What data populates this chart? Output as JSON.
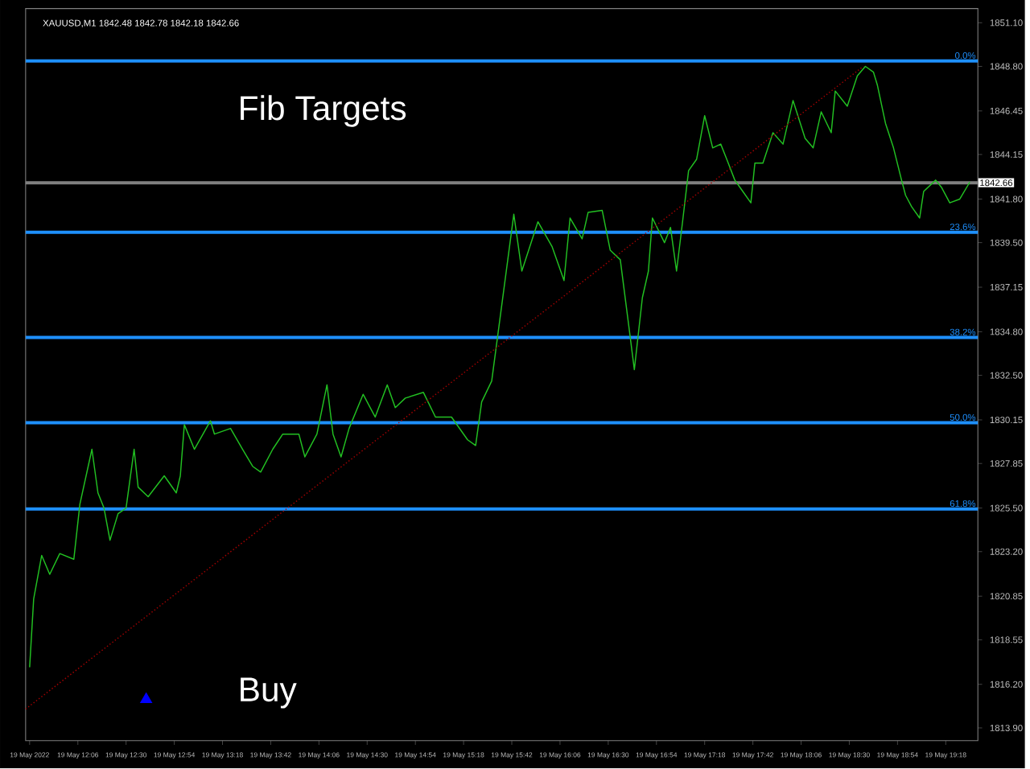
{
  "chart_data": {
    "type": "line",
    "title": "XAUUSD,M1  1842.48 1842.78 1842.18 1842.66",
    "annotations": [
      "Fib Targets",
      "Buy",
      "0.0%",
      "23.6%",
      "38.2%",
      "50.0%",
      "61.8%",
      {
        "text": "1842.66",
        "x": "2022-05-19T19:30",
        "y": 1842.66
      }
    ],
    "xlim": [
      "2022-05-19T11:40",
      "2022-05-19T19:34"
    ],
    "ylim": [
      1813.23,
      1851.85
    ],
    "xticks": [
      {
        "value": "2022-05-19T11:42",
        "label": "19 May 2022"
      },
      {
        "value": "2022-05-19T12:06",
        "label": "19 May 12:06"
      },
      {
        "value": "2022-05-19T12:30",
        "label": "19 May 12:30"
      },
      {
        "value": "2022-05-19T12:54",
        "label": "19 May 12:54"
      },
      {
        "value": "2022-05-19T13:18",
        "label": "19 May 13:18"
      },
      {
        "value": "2022-05-19T13:42",
        "label": "19 May 13:42"
      },
      {
        "value": "2022-05-19T14:06",
        "label": "19 May 14:06"
      },
      {
        "value": "2022-05-19T14:30",
        "label": "19 May 14:30"
      },
      {
        "value": "2022-05-19T14:54",
        "label": "19 May 14:54"
      },
      {
        "value": "2022-05-19T15:18",
        "label": "19 May 15:18"
      },
      {
        "value": "2022-05-19T15:42",
        "label": "19 May 15:42"
      },
      {
        "value": "2022-05-19T16:06",
        "label": "19 May 16:06"
      },
      {
        "value": "2022-05-19T16:30",
        "label": "19 May 16:30"
      },
      {
        "value": "2022-05-19T16:54",
        "label": "19 May 16:54"
      },
      {
        "value": "2022-05-19T17:18",
        "label": "19 May 17:18"
      },
      {
        "value": "2022-05-19T17:42",
        "label": "19 May 17:42"
      },
      {
        "value": "2022-05-19T18:06",
        "label": "19 May 18:06"
      },
      {
        "value": "2022-05-19T18:30",
        "label": "19 May 18:30"
      },
      {
        "value": "2022-05-19T18:54",
        "label": "19 May 18:54"
      },
      {
        "value": "2022-05-19T19:18",
        "label": "19 May 19:18"
      }
    ],
    "yticks": [
      {
        "value": 1851.1,
        "label": "1851.10"
      },
      {
        "value": 1848.8,
        "label": "1848.80"
      },
      1846.45,
      1844.15,
      {
        "value": 1841.8,
        "label": "1841.80"
      },
      {
        "value": 1839.5,
        "label": "1839.50"
      },
      1837.15,
      {
        "value": 1834.8,
        "label": "1834.80"
      },
      {
        "value": 1832.5,
        "label": "1832.50"
      },
      1830.15,
      1827.85,
      {
        "value": 1825.5,
        "label": "1825.50"
      },
      {
        "value": 1823.2,
        "label": "1823.20"
      },
      1820.85,
      1818.55,
      {
        "value": 1816.2,
        "label": "1816.20"
      },
      {
        "value": 1813.9,
        "label": "1813.90"
      }
    ],
    "ref_lines": [
      {
        "axis": "y",
        "value": 1849.09,
        "color": "#1e90ff"
      },
      {
        "axis": "y",
        "value": 1840.05,
        "color": "#1e90ff"
      },
      {
        "axis": "y",
        "value": 1834.5,
        "color": "#1e90ff"
      },
      {
        "axis": "y",
        "value": 1830.0,
        "color": "#1e90ff"
      },
      {
        "axis": "y",
        "value": 1825.45,
        "color": "#1e90ff"
      },
      {
        "axis": "y",
        "value": 1842.66,
        "color": "#808080"
      }
    ],
    "series": [
      {
        "color": "#22c022",
        "x": [
          "2022-05-19T11:42",
          "2022-05-19T11:44",
          "2022-05-19T11:48",
          "2022-05-19T11:52",
          "2022-05-19T11:57",
          "2022-05-19T12:04",
          "2022-05-19T12:07",
          "2022-05-19T12:13",
          "2022-05-19T12:16",
          "2022-05-19T12:19",
          "2022-05-19T12:22",
          "2022-05-19T12:26",
          "2022-05-19T12:30",
          "2022-05-19T12:34",
          "2022-05-19T12:36",
          "2022-05-19T12:41",
          "2022-05-19T12:49",
          "2022-05-19T12:55",
          "2022-05-19T12:57",
          "2022-05-19T12:59",
          "2022-05-19T13:04",
          "2022-05-19T13:12",
          "2022-05-19T13:14",
          "2022-05-19T13:22",
          "2022-05-19T13:28",
          "2022-05-19T13:33",
          "2022-05-19T13:37",
          "2022-05-19T13:43",
          "2022-05-19T13:48",
          "2022-05-19T13:56",
          "2022-05-19T13:59",
          "2022-05-19T14:05",
          "2022-05-19T14:10",
          "2022-05-19T14:13",
          "2022-05-19T14:17",
          "2022-05-19T14:21",
          "2022-05-19T14:28",
          "2022-05-19T14:34",
          "2022-05-19T14:40",
          "2022-05-19T14:44",
          "2022-05-19T14:49",
          "2022-05-19T14:58",
          "2022-05-19T15:04",
          "2022-05-19T15:12",
          "2022-05-19T15:20",
          "2022-05-19T15:24",
          "2022-05-19T15:27",
          "2022-05-19T15:32",
          "2022-05-19T15:40",
          "2022-05-19T15:43",
          "2022-05-19T15:47",
          "2022-05-19T15:55",
          "2022-05-19T16:02",
          "2022-05-19T16:08",
          "2022-05-19T16:11",
          "2022-05-19T16:17",
          "2022-05-19T16:20",
          "2022-05-19T16:27",
          "2022-05-19T16:31",
          "2022-05-19T16:36",
          "2022-05-19T16:40",
          "2022-05-19T16:43",
          "2022-05-19T16:47",
          "2022-05-19T16:50",
          "2022-05-19T16:52",
          "2022-05-19T16:58",
          "2022-05-19T17:01",
          "2022-05-19T17:04",
          "2022-05-19T17:07",
          "2022-05-19T17:10",
          "2022-05-19T17:14",
          "2022-05-19T17:18",
          "2022-05-19T17:22",
          "2022-05-19T17:26",
          "2022-05-19T17:29",
          "2022-05-19T17:33",
          "2022-05-19T17:37",
          "2022-05-19T17:41",
          "2022-05-19T17:43",
          "2022-05-19T17:47",
          "2022-05-19T17:52",
          "2022-05-19T17:57",
          "2022-05-19T18:02",
          "2022-05-19T18:08",
          "2022-05-19T18:12",
          "2022-05-19T18:16",
          "2022-05-19T18:21",
          "2022-05-19T18:23",
          "2022-05-19T18:29",
          "2022-05-19T18:34",
          "2022-05-19T18:38",
          "2022-05-19T18:42",
          "2022-05-19T18:44",
          "2022-05-19T18:48",
          "2022-05-19T18:52",
          "2022-05-19T18:56",
          "2022-05-19T18:58",
          "2022-05-19T19:01",
          "2022-05-19T19:05",
          "2022-05-19T19:07",
          "2022-05-19T19:13",
          "2022-05-19T19:16",
          "2022-05-19T19:20",
          "2022-05-19T19:25",
          "2022-05-19T19:30"
        ],
        "values": [
          1817.1,
          1820.7,
          1823.0,
          1822.0,
          1823.1,
          1822.8,
          1825.7,
          1828.6,
          1826.3,
          1825.5,
          1823.8,
          1825.2,
          1825.5,
          1828.6,
          1826.6,
          1826.1,
          1827.2,
          1826.3,
          1827.2,
          1829.9,
          1828.6,
          1830.1,
          1829.4,
          1829.7,
          1828.6,
          1827.7,
          1827.4,
          1828.6,
          1829.4,
          1829.4,
          1828.2,
          1829.4,
          1832.0,
          1829.4,
          1828.2,
          1829.7,
          1831.5,
          1830.3,
          1832.0,
          1830.8,
          1831.3,
          1831.6,
          1830.3,
          1830.3,
          1829.1,
          1828.8,
          1831.1,
          1832.2,
          1838.6,
          1841.0,
          1838.0,
          1840.6,
          1839.3,
          1837.5,
          1840.8,
          1839.7,
          1841.1,
          1841.2,
          1839.1,
          1838.6,
          1835.3,
          1832.8,
          1836.6,
          1838.0,
          1840.8,
          1839.5,
          1840.3,
          1838.0,
          1840.6,
          1843.3,
          1843.9,
          1846.2,
          1844.5,
          1844.7,
          1843.9,
          1842.8,
          1842.2,
          1841.6,
          1843.7,
          1843.7,
          1845.3,
          1844.7,
          1847.0,
          1845.0,
          1844.5,
          1846.4,
          1845.3,
          1847.5,
          1846.7,
          1848.3,
          1848.8,
          1848.5,
          1847.8,
          1845.8,
          1844.5,
          1842.8,
          1842.0,
          1841.4,
          1840.8,
          1842.2,
          1842.8,
          1842.4,
          1841.6,
          1841.8,
          1842.7
        ]
      },
      {
        "type": "line",
        "color": "#a00000",
        "line_style": "dotted",
        "x": [
          "2022-05-19T11:40",
          "2022-05-19T18:37"
        ],
        "values": [
          1814.9,
          1848.8
        ]
      },
      {
        "type": "scatter",
        "color": "#0000ff",
        "marker": "triangle",
        "x": [
          "2022-05-19T12:40"
        ],
        "values": [
          1815.4
        ]
      }
    ]
  }
}
